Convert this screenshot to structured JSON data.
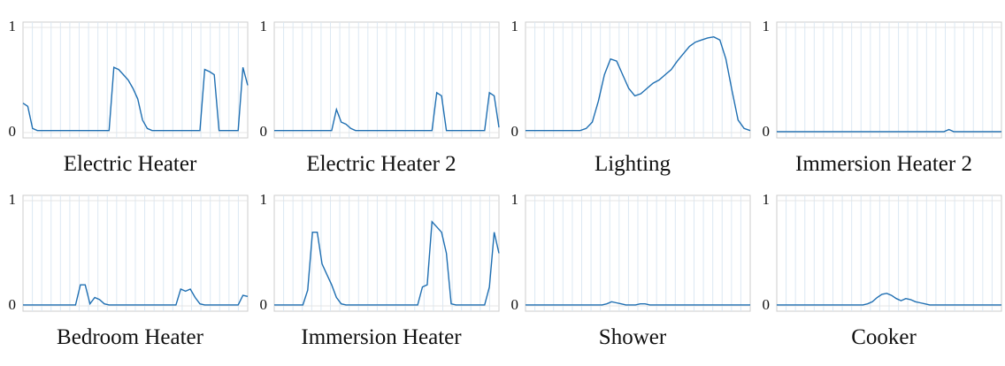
{
  "chart_data": [
    {
      "type": "line",
      "title": "Electric Heater",
      "ylim": [
        -0.05,
        1.05
      ],
      "yticks": [
        0,
        1
      ],
      "grid": true,
      "color": "#1f6fb2",
      "values": [
        0.28,
        0.25,
        0.04,
        0.02,
        0.02,
        0.02,
        0.02,
        0.02,
        0.02,
        0.02,
        0.02,
        0.02,
        0.02,
        0.02,
        0.02,
        0.02,
        0.02,
        0.02,
        0.02,
        0.62,
        0.6,
        0.55,
        0.5,
        0.42,
        0.32,
        0.12,
        0.04,
        0.02,
        0.02,
        0.02,
        0.02,
        0.02,
        0.02,
        0.02,
        0.02,
        0.02,
        0.02,
        0.02,
        0.6,
        0.58,
        0.55,
        0.02,
        0.02,
        0.02,
        0.02,
        0.02,
        0.62,
        0.45
      ]
    },
    {
      "type": "line",
      "title": "Electric Heater 2",
      "ylim": [
        -0.05,
        1.05
      ],
      "yticks": [
        0,
        1
      ],
      "grid": true,
      "color": "#1f6fb2",
      "values": [
        0.02,
        0.02,
        0.02,
        0.02,
        0.02,
        0.02,
        0.02,
        0.02,
        0.02,
        0.02,
        0.02,
        0.02,
        0.02,
        0.22,
        0.1,
        0.08,
        0.04,
        0.02,
        0.02,
        0.02,
        0.02,
        0.02,
        0.02,
        0.02,
        0.02,
        0.02,
        0.02,
        0.02,
        0.02,
        0.02,
        0.02,
        0.02,
        0.02,
        0.02,
        0.38,
        0.35,
        0.02,
        0.02,
        0.02,
        0.02,
        0.02,
        0.02,
        0.02,
        0.02,
        0.02,
        0.38,
        0.35,
        0.05
      ]
    },
    {
      "type": "line",
      "title": "Lighting",
      "ylim": [
        -0.05,
        1.05
      ],
      "yticks": [
        0,
        1
      ],
      "grid": true,
      "color": "#1f6fb2",
      "values": [
        0.02,
        0.02,
        0.02,
        0.02,
        0.02,
        0.02,
        0.02,
        0.02,
        0.02,
        0.02,
        0.04,
        0.1,
        0.3,
        0.55,
        0.7,
        0.68,
        0.55,
        0.42,
        0.35,
        0.37,
        0.42,
        0.47,
        0.5,
        0.55,
        0.6,
        0.68,
        0.75,
        0.82,
        0.86,
        0.88,
        0.9,
        0.91,
        0.88,
        0.7,
        0.4,
        0.12,
        0.04,
        0.02
      ]
    },
    {
      "type": "line",
      "title": "Immersion Heater 2",
      "ylim": [
        -0.05,
        1.05
      ],
      "yticks": [
        0,
        1
      ],
      "grid": true,
      "color": "#1f6fb2",
      "values": [
        0.01,
        0.01,
        0.01,
        0.01,
        0.01,
        0.01,
        0.01,
        0.01,
        0.01,
        0.01,
        0.01,
        0.01,
        0.01,
        0.01,
        0.01,
        0.01,
        0.01,
        0.01,
        0.01,
        0.01,
        0.01,
        0.01,
        0.01,
        0.01,
        0.01,
        0.01,
        0.01,
        0.01,
        0.01,
        0.01,
        0.01,
        0.01,
        0.01,
        0.01,
        0.01,
        0.01,
        0.03,
        0.01,
        0.01,
        0.01,
        0.01,
        0.01,
        0.01,
        0.01,
        0.01,
        0.01,
        0.01,
        0.01
      ]
    },
    {
      "type": "line",
      "title": "Bedroom Heater",
      "ylim": [
        -0.05,
        1.05
      ],
      "yticks": [
        0,
        1
      ],
      "grid": true,
      "color": "#1f6fb2",
      "values": [
        0.01,
        0.01,
        0.01,
        0.01,
        0.01,
        0.01,
        0.01,
        0.01,
        0.01,
        0.01,
        0.01,
        0.01,
        0.2,
        0.2,
        0.02,
        0.08,
        0.06,
        0.02,
        0.01,
        0.01,
        0.01,
        0.01,
        0.01,
        0.01,
        0.01,
        0.01,
        0.01,
        0.01,
        0.01,
        0.01,
        0.01,
        0.01,
        0.01,
        0.16,
        0.14,
        0.16,
        0.08,
        0.02,
        0.01,
        0.01,
        0.01,
        0.01,
        0.01,
        0.01,
        0.01,
        0.01,
        0.1,
        0.09
      ]
    },
    {
      "type": "line",
      "title": "Immersion Heater",
      "ylim": [
        -0.05,
        1.05
      ],
      "yticks": [
        0,
        1
      ],
      "grid": true,
      "color": "#1f6fb2",
      "values": [
        0.01,
        0.01,
        0.01,
        0.01,
        0.01,
        0.01,
        0.01,
        0.15,
        0.7,
        0.7,
        0.4,
        0.3,
        0.2,
        0.08,
        0.02,
        0.01,
        0.01,
        0.01,
        0.01,
        0.01,
        0.01,
        0.01,
        0.01,
        0.01,
        0.01,
        0.01,
        0.01,
        0.01,
        0.01,
        0.01,
        0.01,
        0.18,
        0.2,
        0.8,
        0.75,
        0.7,
        0.5,
        0.02,
        0.01,
        0.01,
        0.01,
        0.01,
        0.01,
        0.01,
        0.01,
        0.18,
        0.7,
        0.5
      ]
    },
    {
      "type": "line",
      "title": "Shower",
      "ylim": [
        -0.05,
        1.05
      ],
      "yticks": [
        0,
        1
      ],
      "grid": true,
      "color": "#1f6fb2",
      "values": [
        0.01,
        0.01,
        0.01,
        0.01,
        0.01,
        0.01,
        0.01,
        0.01,
        0.01,
        0.01,
        0.01,
        0.01,
        0.01,
        0.01,
        0.01,
        0.01,
        0.01,
        0.02,
        0.04,
        0.03,
        0.02,
        0.01,
        0.01,
        0.01,
        0.02,
        0.02,
        0.01,
        0.01,
        0.01,
        0.01,
        0.01,
        0.01,
        0.01,
        0.01,
        0.01,
        0.01,
        0.01,
        0.01,
        0.01,
        0.01,
        0.01,
        0.01,
        0.01,
        0.01,
        0.01,
        0.01,
        0.01,
        0.01
      ]
    },
    {
      "type": "line",
      "title": "Cooker",
      "ylim": [
        -0.05,
        1.05
      ],
      "yticks": [
        0,
        1
      ],
      "grid": true,
      "color": "#1f6fb2",
      "values": [
        0.01,
        0.01,
        0.01,
        0.01,
        0.01,
        0.01,
        0.01,
        0.01,
        0.01,
        0.01,
        0.01,
        0.01,
        0.01,
        0.01,
        0.01,
        0.01,
        0.01,
        0.01,
        0.01,
        0.02,
        0.04,
        0.08,
        0.11,
        0.12,
        0.1,
        0.07,
        0.05,
        0.07,
        0.06,
        0.04,
        0.03,
        0.02,
        0.01,
        0.01,
        0.01,
        0.01,
        0.01,
        0.01,
        0.01,
        0.01,
        0.01,
        0.01,
        0.01,
        0.01,
        0.01,
        0.01,
        0.01,
        0.01
      ]
    }
  ]
}
